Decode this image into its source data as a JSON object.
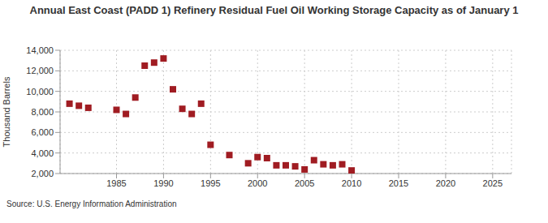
{
  "chart_data": {
    "type": "scatter",
    "title": "Annual East Coast (PADD 1) Refinery Residual Fuel Oil Working Storage Capacity as of January 1",
    "y_label": "Thousand Barrels",
    "source": "Source: U.S. Energy Information Administration",
    "x": [
      1980,
      1981,
      1982,
      1985,
      1986,
      1987,
      1988,
      1989,
      1990,
      1991,
      1992,
      1993,
      1994,
      1995,
      1997,
      1999,
      2000,
      2001,
      2002,
      2003,
      2004,
      2005,
      2006,
      2007,
      2008,
      2009,
      2010
    ],
    "values": [
      8800,
      8600,
      8400,
      8200,
      7800,
      9400,
      12500,
      12800,
      13200,
      10200,
      8300,
      7800,
      8800,
      4800,
      3800,
      3000,
      3600,
      3500,
      2800,
      2800,
      2700,
      2400,
      3300,
      2900,
      2800,
      2900,
      2300
    ],
    "color": "#a01c22",
    "marker": "square",
    "xlim": [
      1979,
      2027
    ],
    "xticks": [
      1985,
      1990,
      1995,
      2000,
      2005,
      2010,
      2015,
      2020,
      2025
    ],
    "ylim": [
      2000,
      14000
    ],
    "yticks": [
      {
        "value": 2000,
        "label": "2,000"
      },
      {
        "value": 4000,
        "label": "4,000"
      },
      {
        "value": 6000,
        "label": "6,000"
      },
      {
        "value": 8000,
        "label": "8,000"
      },
      {
        "value": 10000,
        "label": "10,000"
      },
      {
        "value": 12000,
        "label": "12,000"
      },
      {
        "value": 14000,
        "label": "14,000"
      }
    ],
    "grid": true
  }
}
